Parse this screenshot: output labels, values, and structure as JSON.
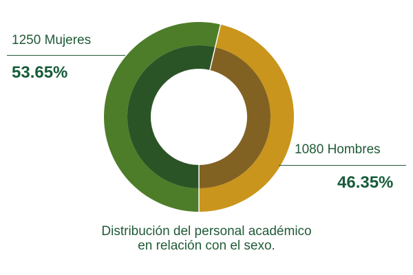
{
  "chart_data": {
    "type": "pie",
    "style": "donut",
    "series": [
      {
        "count": "1250",
        "name": "Mujeres",
        "percent": "53.65%",
        "value": 53.65,
        "color": "#4e7d2a",
        "inner_color": "#2b5426"
      },
      {
        "count": "1080",
        "name": "Hombres",
        "percent": "46.35%",
        "value": 46.35,
        "color": "#c9951c",
        "inner_color": "#826223"
      }
    ],
    "caption_line1": "Distribución del personal académico",
    "caption_line2": "en relación con el sexo."
  }
}
